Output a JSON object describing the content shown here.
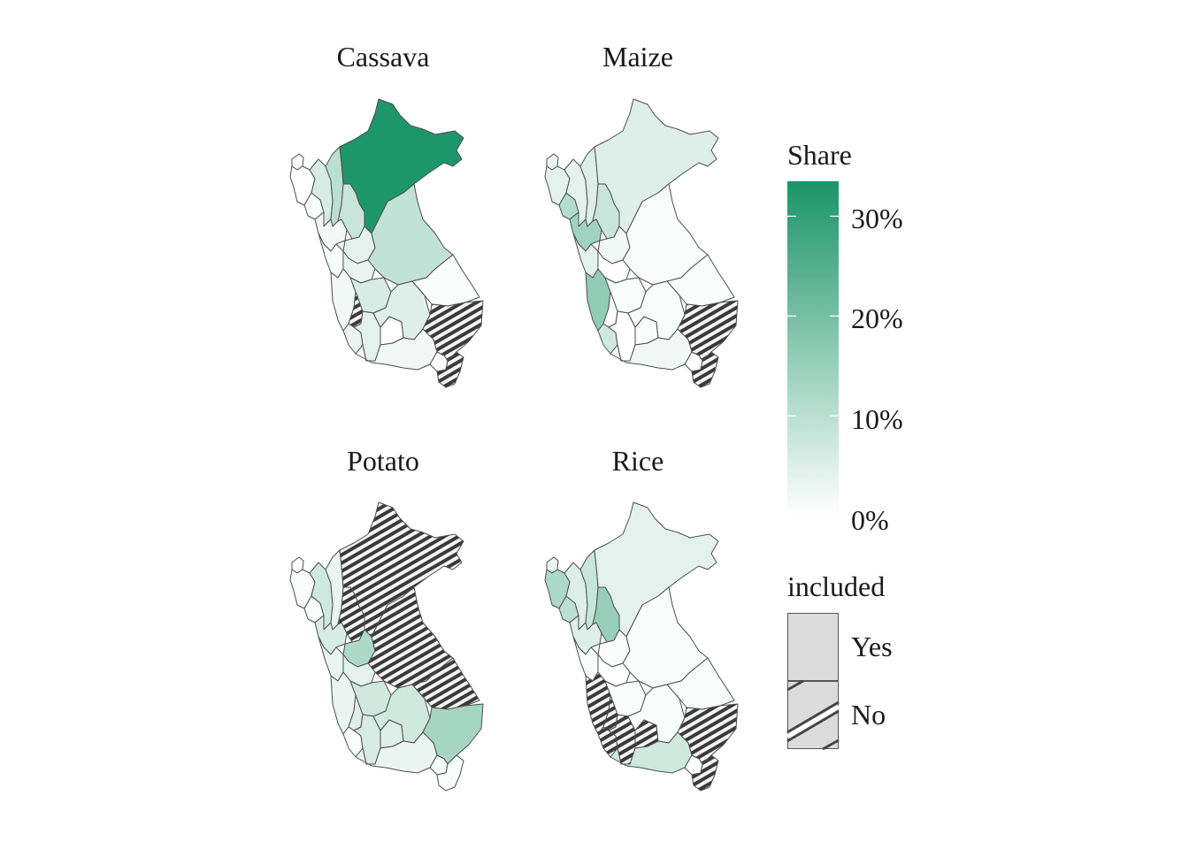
{
  "panels": [
    {
      "title": "Cassava",
      "regions": [
        {
          "id": "tumbes",
          "share": 0.0,
          "included": true
        },
        {
          "id": "piura",
          "share": 0.0,
          "included": true
        },
        {
          "id": "lambayeque",
          "share": 0.01,
          "included": true
        },
        {
          "id": "cajamarca",
          "share": 0.06,
          "included": true
        },
        {
          "id": "amazonas",
          "share": 0.1,
          "included": true
        },
        {
          "id": "loreto",
          "share": 0.33,
          "included": true
        },
        {
          "id": "sanmartin",
          "share": 0.08,
          "included": true
        },
        {
          "id": "lalibertad",
          "share": 0.02,
          "included": true
        },
        {
          "id": "ancash",
          "share": 0.01,
          "included": true
        },
        {
          "id": "huanuco",
          "share": 0.04,
          "included": true
        },
        {
          "id": "ucayali",
          "share": 0.09,
          "included": true
        },
        {
          "id": "pasco",
          "share": 0.03,
          "included": true
        },
        {
          "id": "lima",
          "share": 0.02,
          "included": true
        },
        {
          "id": "junin",
          "share": 0.06,
          "included": true
        },
        {
          "id": "huancavelica",
          "share": 0.0,
          "included": false
        },
        {
          "id": "ica",
          "share": 0.03,
          "included": true
        },
        {
          "id": "ayacucho",
          "share": 0.04,
          "included": true
        },
        {
          "id": "apurimac",
          "share": 0.0,
          "included": true
        },
        {
          "id": "cusco",
          "share": 0.05,
          "included": true
        },
        {
          "id": "madrededios",
          "share": 0.01,
          "included": true
        },
        {
          "id": "puno",
          "share": 0.0,
          "included": false
        },
        {
          "id": "arequipa",
          "share": 0.02,
          "included": true
        },
        {
          "id": "moquegua",
          "share": 0.0,
          "included": true
        },
        {
          "id": "tacna",
          "share": 0.0,
          "included": false
        }
      ]
    },
    {
      "title": "Maize",
      "regions": [
        {
          "id": "tumbes",
          "share": 0.03,
          "included": true
        },
        {
          "id": "piura",
          "share": 0.04,
          "included": true
        },
        {
          "id": "lambayeque",
          "share": 0.11,
          "included": true
        },
        {
          "id": "cajamarca",
          "share": 0.04,
          "included": true
        },
        {
          "id": "amazonas",
          "share": 0.05,
          "included": true
        },
        {
          "id": "loreto",
          "share": 0.05,
          "included": true
        },
        {
          "id": "sanmartin",
          "share": 0.08,
          "included": true
        },
        {
          "id": "lalibertad",
          "share": 0.14,
          "included": true
        },
        {
          "id": "ancash",
          "share": 0.04,
          "included": true
        },
        {
          "id": "huanuco",
          "share": 0.02,
          "included": true
        },
        {
          "id": "ucayali",
          "share": 0.01,
          "included": true
        },
        {
          "id": "pasco",
          "share": 0.0,
          "included": true
        },
        {
          "id": "lima",
          "share": 0.16,
          "included": true
        },
        {
          "id": "junin",
          "share": 0.01,
          "included": true
        },
        {
          "id": "huancavelica",
          "share": 0.0,
          "included": true
        },
        {
          "id": "ica",
          "share": 0.07,
          "included": true
        },
        {
          "id": "ayacucho",
          "share": 0.0,
          "included": true
        },
        {
          "id": "apurimac",
          "share": 0.01,
          "included": true
        },
        {
          "id": "cusco",
          "share": 0.01,
          "included": true
        },
        {
          "id": "madrededios",
          "share": 0.01,
          "included": true
        },
        {
          "id": "puno",
          "share": 0.0,
          "included": false
        },
        {
          "id": "arequipa",
          "share": 0.02,
          "included": true
        },
        {
          "id": "moquegua",
          "share": 0.0,
          "included": true
        },
        {
          "id": "tacna",
          "share": 0.0,
          "included": false
        }
      ]
    },
    {
      "title": "Potato",
      "regions": [
        {
          "id": "tumbes",
          "share": 0.0,
          "included": true
        },
        {
          "id": "piura",
          "share": 0.01,
          "included": true
        },
        {
          "id": "lambayeque",
          "share": 0.01,
          "included": true
        },
        {
          "id": "cajamarca",
          "share": 0.07,
          "included": true
        },
        {
          "id": "amazonas",
          "share": 0.03,
          "included": true
        },
        {
          "id": "loreto",
          "share": 0.0,
          "included": false
        },
        {
          "id": "sanmartin",
          "share": 0.0,
          "included": false
        },
        {
          "id": "lalibertad",
          "share": 0.06,
          "included": true
        },
        {
          "id": "ancash",
          "share": 0.03,
          "included": true
        },
        {
          "id": "huanuco",
          "share": 0.12,
          "included": true
        },
        {
          "id": "ucayali",
          "share": 0.0,
          "included": false
        },
        {
          "id": "pasco",
          "share": 0.04,
          "included": true
        },
        {
          "id": "lima",
          "share": 0.03,
          "included": true
        },
        {
          "id": "junin",
          "share": 0.07,
          "included": true
        },
        {
          "id": "huancavelica",
          "share": 0.05,
          "included": true
        },
        {
          "id": "ica",
          "share": 0.01,
          "included": true
        },
        {
          "id": "ayacucho",
          "share": 0.06,
          "included": true
        },
        {
          "id": "apurimac",
          "share": 0.05,
          "included": true
        },
        {
          "id": "cusco",
          "share": 0.07,
          "included": true
        },
        {
          "id": "madrededios",
          "share": 0.0,
          "included": false
        },
        {
          "id": "puno",
          "share": 0.13,
          "included": true
        },
        {
          "id": "arequipa",
          "share": 0.03,
          "included": true
        },
        {
          "id": "moquegua",
          "share": 0.01,
          "included": true
        },
        {
          "id": "tacna",
          "share": 0.01,
          "included": true
        }
      ]
    },
    {
      "title": "Rice",
      "regions": [
        {
          "id": "tumbes",
          "share": 0.03,
          "included": true
        },
        {
          "id": "piura",
          "share": 0.12,
          "included": true
        },
        {
          "id": "lambayeque",
          "share": 0.1,
          "included": true
        },
        {
          "id": "cajamarca",
          "share": 0.05,
          "included": true
        },
        {
          "id": "amazonas",
          "share": 0.08,
          "included": true
        },
        {
          "id": "loreto",
          "share": 0.04,
          "included": true
        },
        {
          "id": "sanmartin",
          "share": 0.15,
          "included": true
        },
        {
          "id": "lalibertad",
          "share": 0.05,
          "included": true
        },
        {
          "id": "ancash",
          "share": 0.01,
          "included": true
        },
        {
          "id": "huanuco",
          "share": 0.01,
          "included": true
        },
        {
          "id": "ucayali",
          "share": 0.01,
          "included": true
        },
        {
          "id": "pasco",
          "share": 0.0,
          "included": true
        },
        {
          "id": "lima",
          "share": 0.0,
          "included": false
        },
        {
          "id": "junin",
          "share": 0.01,
          "included": true
        },
        {
          "id": "huancavelica",
          "share": 0.0,
          "included": false
        },
        {
          "id": "ica",
          "share": 0.0,
          "included": false
        },
        {
          "id": "ayacucho",
          "share": 0.0,
          "included": false
        },
        {
          "id": "apurimac",
          "share": 0.0,
          "included": false
        },
        {
          "id": "cusco",
          "share": 0.01,
          "included": true
        },
        {
          "id": "madrededios",
          "share": 0.01,
          "included": true
        },
        {
          "id": "puno",
          "share": 0.0,
          "included": false
        },
        {
          "id": "arequipa",
          "share": 0.07,
          "included": true
        },
        {
          "id": "moquegua",
          "share": 0.0,
          "included": true
        },
        {
          "id": "tacna",
          "share": 0.0,
          "included": false
        }
      ]
    }
  ],
  "legend": {
    "share_title": "Share",
    "ticks": [
      {
        "value": 0.3,
        "label": "30%"
      },
      {
        "value": 0.2,
        "label": "20%"
      },
      {
        "value": 0.1,
        "label": "10%"
      },
      {
        "value": 0.0,
        "label": "0%"
      }
    ],
    "share_max": 0.335,
    "color_low": "#ffffff",
    "color_high": "#1a9468",
    "included_title": "included",
    "included_yes": "Yes",
    "included_no": "No"
  }
}
